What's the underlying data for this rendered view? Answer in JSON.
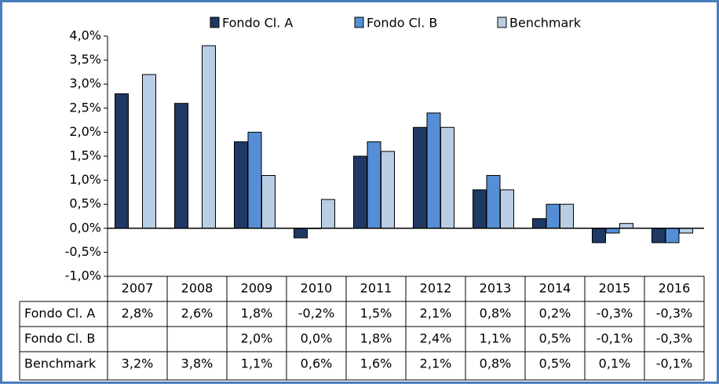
{
  "chart_data": {
    "type": "bar",
    "categories": [
      "2007",
      "2008",
      "2009",
      "2010",
      "2011",
      "2012",
      "2013",
      "2014",
      "2015",
      "2016"
    ],
    "series": [
      {
        "name": "Fondo Cl. A",
        "color": "#1f3864",
        "values": [
          2.8,
          2.6,
          1.8,
          -0.2,
          1.5,
          2.1,
          0.8,
          0.2,
          -0.3,
          -0.3
        ],
        "value_labels": [
          "2,8%",
          "2,6%",
          "1,8%",
          "-0,2%",
          "1,5%",
          "2,1%",
          "0,8%",
          "0,2%",
          "-0,3%",
          "-0,3%"
        ]
      },
      {
        "name": "Fondo Cl. B",
        "color": "#558ed5",
        "values": [
          null,
          null,
          2.0,
          0.0,
          1.8,
          2.4,
          1.1,
          0.5,
          -0.1,
          -0.3
        ],
        "value_labels": [
          null,
          null,
          "2,0%",
          "0,0%",
          "1,8%",
          "2,4%",
          "1,1%",
          "0,5%",
          "-0,1%",
          "-0,3%"
        ]
      },
      {
        "name": "Benchmark",
        "color": "#b9cde5",
        "values": [
          3.2,
          3.8,
          1.1,
          0.6,
          1.6,
          2.1,
          0.8,
          0.5,
          0.1,
          -0.1
        ],
        "value_labels": [
          "3,2%",
          "3,8%",
          "1,1%",
          "0,6%",
          "1,6%",
          "2,1%",
          "0,8%",
          "0,5%",
          "0,1%",
          "-0,1%"
        ]
      }
    ],
    "ylim": [
      -1,
      4
    ],
    "yticks": [
      {
        "value": -1,
        "label": "-1,0%"
      },
      {
        "value": -0.5,
        "label": "-0,5%"
      },
      {
        "value": 0,
        "label": "0,0%"
      },
      {
        "value": 0.5,
        "label": "0,5%"
      },
      {
        "value": 1,
        "label": "1,0%"
      },
      {
        "value": 1.5,
        "label": "1,5%"
      },
      {
        "value": 2,
        "label": "2,0%"
      },
      {
        "value": 2.5,
        "label": "2,5%"
      },
      {
        "value": 3,
        "label": "3,0%"
      },
      {
        "value": 3.5,
        "label": "3,5%"
      },
      {
        "value": 4,
        "label": "4,0%"
      }
    ],
    "legend_position": "top"
  }
}
